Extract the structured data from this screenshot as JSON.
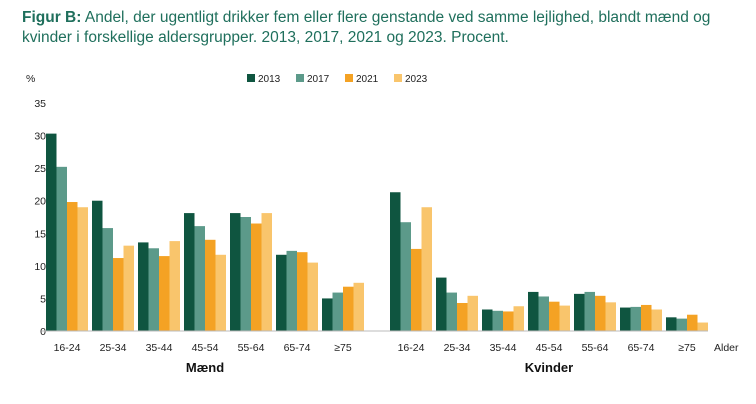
{
  "figure": {
    "label": "Figur B:",
    "title": "Andel, der ugentligt drikker fem eller flere genstande ved samme lejlighed, blandt mænd og kvinder i forskellige aldersgrupper. 2013, 2017, 2021 og 2023. Procent."
  },
  "chart_data": {
    "type": "bar",
    "ylabel": "%",
    "xlabel": "Alder",
    "ylim": [
      0,
      35
    ],
    "yticks": [
      0,
      5,
      10,
      15,
      20,
      25,
      30,
      35
    ],
    "grid": false,
    "legend_position": "top-center",
    "groups": [
      {
        "name": "Mænd",
        "categories": [
          "16-24",
          "25-34",
          "35-44",
          "45-54",
          "55-64",
          "65-74",
          "≥75"
        ],
        "series": [
          {
            "name": "2013",
            "color": "#0f5540",
            "values": [
              30.3,
              20.0,
              13.6,
              18.1,
              18.1,
              11.7,
              5.0
            ]
          },
          {
            "name": "2017",
            "color": "#5c9a8a",
            "values": [
              25.2,
              15.8,
              12.7,
              16.1,
              17.5,
              12.3,
              5.9
            ]
          },
          {
            "name": "2021",
            "color": "#f4a224",
            "values": [
              19.8,
              11.2,
              11.5,
              14.0,
              16.5,
              12.1,
              6.8
            ]
          },
          {
            "name": "2023",
            "color": "#f9c56c",
            "values": [
              19.0,
              13.1,
              13.8,
              11.7,
              18.1,
              10.5,
              7.4
            ]
          }
        ]
      },
      {
        "name": "Kvinder",
        "categories": [
          "16-24",
          "25-34",
          "35-44",
          "45-54",
          "55-64",
          "65-74",
          "≥75"
        ],
        "series": [
          {
            "name": "2013",
            "color": "#0f5540",
            "values": [
              21.3,
              8.2,
              3.3,
              6.0,
              5.7,
              3.6,
              2.1
            ]
          },
          {
            "name": "2017",
            "color": "#5c9a8a",
            "values": [
              16.7,
              5.9,
              3.1,
              5.3,
              6.0,
              3.7,
              1.9
            ]
          },
          {
            "name": "2021",
            "color": "#f4a224",
            "values": [
              12.6,
              4.3,
              3.0,
              4.5,
              5.4,
              4.0,
              2.5
            ]
          },
          {
            "name": "2023",
            "color": "#f9c56c",
            "values": [
              19.0,
              5.4,
              3.8,
              3.9,
              4.4,
              3.3,
              1.3
            ]
          }
        ]
      }
    ]
  }
}
